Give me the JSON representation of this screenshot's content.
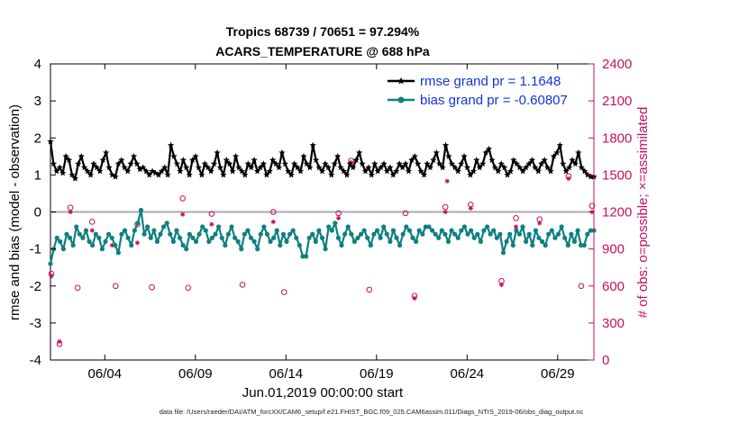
{
  "chart_data": {
    "type": "line",
    "title": "Tropics 68739 / 70651 = 97.294%",
    "subtitle": "ACARS_TEMPERATURE @ 688 hPa",
    "xlabel": "Jun.01,2019 00:00:00 start",
    "ylabel": "rmse and bias (model - observation)",
    "y2label": "# of obs: o=possible; ×=assimilated",
    "footnote": "data file: /Users/raeder/DAI/ATM_forcXX/CAM6_setup/f.e21.FHIST_BGC.f09_025.CAM6assim.011/Diags_NTrS_2019-06/obs_diag_output.nc",
    "xlim": [
      1,
      31
    ],
    "ylim": [
      -4,
      4
    ],
    "y2lim": [
      0,
      2400
    ],
    "x_ticks": [
      4,
      9,
      14,
      19,
      24,
      29
    ],
    "x_tick_labels": [
      "06/04",
      "06/09",
      "06/14",
      "06/19",
      "06/24",
      "06/29"
    ],
    "y_ticks": [
      -4,
      -3,
      -2,
      -1,
      0,
      1,
      2,
      3,
      4
    ],
    "y_tick_labels": [
      "-4",
      "-3",
      "-2",
      "-1",
      "0",
      "1",
      "2",
      "3",
      "4"
    ],
    "y2_ticks": [
      0,
      300,
      600,
      900,
      1200,
      1500,
      1800,
      2100,
      2400
    ],
    "y2_tick_labels": [
      "0",
      "300",
      "600",
      "900",
      "1200",
      "1500",
      "1800",
      "2100",
      "2400"
    ],
    "legend": {
      "position": "top-right",
      "entries": [
        "rmse grand pr = 1.1648",
        "bias grand pr = -0.60807"
      ]
    },
    "series": [
      {
        "name": "rmse grand pr = 1.1648",
        "color": "#000000",
        "values": [
          1.9,
          1.3,
          1.1,
          1.2,
          1.05,
          1.5,
          1.4,
          1.0,
          0.9,
          1.3,
          1.5,
          1.2,
          1.1,
          1.0,
          1.3,
          1.2,
          1.1,
          1.4,
          1.6,
          1.2,
          1.0,
          0.95,
          1.3,
          1.4,
          1.2,
          1.1,
          1.3,
          1.5,
          1.3,
          1.15,
          1.2,
          1.1,
          1.0,
          1.1,
          1.05,
          1.0,
          1.1,
          1.2,
          1.0,
          1.8,
          1.5,
          1.3,
          1.1,
          1.4,
          1.2,
          1.0,
          1.4,
          1.5,
          1.2,
          1.0,
          1.3,
          1.2,
          1.1,
          1.3,
          1.6,
          1.2,
          1.0,
          1.4,
          1.3,
          1.1,
          1.5,
          1.2,
          1.1,
          1.0,
          1.3,
          1.2,
          1.4,
          1.1,
          1.2,
          1.3,
          1.0,
          1.1,
          1.4,
          1.3,
          1.2,
          1.6,
          1.3,
          1.1,
          1.0,
          1.3,
          1.2,
          1.1,
          1.5,
          1.3,
          1.2,
          1.8,
          1.4,
          1.2,
          1.1,
          1.3,
          1.2,
          1.0,
          1.3,
          1.5,
          1.2,
          1.1,
          1.0,
          1.3,
          1.2,
          1.4,
          1.6,
          1.3,
          1.1,
          1.2,
          1.0,
          1.3,
          1.1,
          1.2,
          1.3,
          1.1,
          1.2,
          1.0,
          1.1,
          1.3,
          1.2,
          1.3,
          1.1,
          1.4,
          1.5,
          1.3,
          1.1,
          1.0,
          1.3,
          1.2,
          1.4,
          1.6,
          1.3,
          1.2,
          1.8,
          1.5,
          1.3,
          1.2,
          1.1,
          1.3,
          1.5,
          1.2,
          1.0,
          1.1,
          1.4,
          1.2,
          1.3,
          1.6,
          1.7,
          1.4,
          1.2,
          1.1,
          1.3,
          1.2,
          1.0,
          1.1,
          1.4,
          1.3,
          1.2,
          1.1,
          1.2,
          1.3,
          1.4,
          1.2,
          1.1,
          1.3,
          1.4,
          1.2,
          1.1,
          1.5,
          1.6,
          1.8,
          1.3,
          1.1,
          1.2,
          1.4,
          1.3,
          1.6,
          1.2,
          1.1,
          1.0,
          0.95,
          0.95
        ]
      },
      {
        "name": "bias grand pr = -0.60807",
        "color": "#0e8080",
        "values": [
          -1.4,
          -1.0,
          -0.7,
          -0.8,
          -1.0,
          -0.6,
          -0.7,
          -0.9,
          -0.4,
          -0.6,
          -0.7,
          -0.5,
          -0.8,
          -0.9,
          -0.6,
          -0.7,
          -1.0,
          -0.8,
          -0.6,
          -0.7,
          -0.9,
          -1.1,
          -0.6,
          -0.5,
          -0.7,
          -0.9,
          -0.5,
          -0.3,
          0.05,
          -0.6,
          -0.4,
          -0.7,
          -0.5,
          -0.8,
          -0.6,
          -0.4,
          -0.3,
          -0.6,
          -0.8,
          -0.5,
          -0.7,
          -0.9,
          -1.0,
          -0.6,
          -0.7,
          -0.8,
          -0.6,
          -0.4,
          -0.5,
          -0.8,
          -0.7,
          -0.6,
          -0.4,
          -0.7,
          -0.9,
          -0.6,
          -0.4,
          -0.7,
          -0.8,
          -1.0,
          -0.6,
          -0.5,
          -0.7,
          -0.8,
          -1.0,
          -0.6,
          -0.4,
          -0.6,
          -0.8,
          -0.7,
          -0.5,
          -0.9,
          -0.6,
          -0.8,
          -0.6,
          -0.5,
          -0.7,
          -0.9,
          -1.2,
          -1.2,
          -0.7,
          -0.6,
          -0.8,
          -0.5,
          -0.7,
          -1.0,
          -0.4,
          -0.5,
          -0.3,
          -0.7,
          -0.9,
          -0.6,
          -0.4,
          -0.6,
          -0.8,
          -0.7,
          -0.6,
          -0.5,
          -0.7,
          -0.9,
          -0.6,
          -0.5,
          -0.7,
          -0.4,
          -0.6,
          -0.8,
          -0.5,
          -0.7,
          -0.9,
          -0.6,
          -0.4,
          -0.5,
          -0.7,
          -0.8,
          -0.5,
          -0.6,
          -0.4,
          -0.4,
          -0.5,
          -0.6,
          -0.7,
          -0.5,
          -0.6,
          -0.8,
          -0.5,
          -0.6,
          -0.7,
          -0.5,
          -0.4,
          -0.6,
          -0.5,
          -0.7,
          -0.6,
          -0.8,
          -0.5,
          -0.4,
          -0.6,
          -0.5,
          -0.7,
          -0.6,
          -1.1,
          -0.8,
          -0.6,
          -0.9,
          -0.5,
          -0.6,
          -0.4,
          -0.8,
          -0.6,
          -0.9,
          -0.5,
          -0.7,
          -0.8,
          -0.9,
          -0.6,
          -0.5,
          -0.7,
          -0.6,
          -0.4,
          -0.7,
          -0.9,
          -0.6,
          -0.8,
          -0.5,
          -0.9,
          -0.9,
          -0.6,
          -0.5,
          -0.5
        ]
      }
    ],
    "obs_possible": [
      {
        "x": 1.05,
        "y": 700
      },
      {
        "x": 1.5,
        "y": 130
      },
      {
        "x": 2.1,
        "y": 1235
      },
      {
        "x": 2.5,
        "y": 585
      },
      {
        "x": 3.3,
        "y": 1120
      },
      {
        "x": 4.6,
        "y": 600
      },
      {
        "x": 5.8,
        "y": 1100
      },
      {
        "x": 6.6,
        "y": 590
      },
      {
        "x": 8.3,
        "y": 1310
      },
      {
        "x": 8.6,
        "y": 585
      },
      {
        "x": 9.9,
        "y": 1185
      },
      {
        "x": 11.6,
        "y": 610
      },
      {
        "x": 13.3,
        "y": 1200
      },
      {
        "x": 13.9,
        "y": 550
      },
      {
        "x": 16.9,
        "y": 1190
      },
      {
        "x": 17.6,
        "y": 1615
      },
      {
        "x": 18.6,
        "y": 570
      },
      {
        "x": 20.6,
        "y": 1190
      },
      {
        "x": 21.1,
        "y": 520
      },
      {
        "x": 22.8,
        "y": 1240
      },
      {
        "x": 24.2,
        "y": 1260
      },
      {
        "x": 25.9,
        "y": 640
      },
      {
        "x": 26.7,
        "y": 1150
      },
      {
        "x": 28.0,
        "y": 1140
      },
      {
        "x": 29.6,
        "y": 1490
      },
      {
        "x": 30.3,
        "y": 600
      },
      {
        "x": 30.9,
        "y": 1250
      }
    ],
    "obs_assimilated": [
      {
        "x": 1.05,
        "y": 680
      },
      {
        "x": 1.5,
        "y": 150
      },
      {
        "x": 2.1,
        "y": 1200
      },
      {
        "x": 3.3,
        "y": 1050
      },
      {
        "x": 4.4,
        "y": 930
      },
      {
        "x": 5.8,
        "y": 950
      },
      {
        "x": 8.3,
        "y": 1180
      },
      {
        "x": 9.9,
        "y": 1100
      },
      {
        "x": 13.3,
        "y": 1120
      },
      {
        "x": 16.9,
        "y": 1150
      },
      {
        "x": 17.6,
        "y": 1600
      },
      {
        "x": 21.1,
        "y": 500
      },
      {
        "x": 22.8,
        "y": 1200
      },
      {
        "x": 22.9,
        "y": 1450
      },
      {
        "x": 24.2,
        "y": 1230
      },
      {
        "x": 25.9,
        "y": 610
      },
      {
        "x": 26.7,
        "y": 1080
      },
      {
        "x": 28.0,
        "y": 1110
      },
      {
        "x": 29.6,
        "y": 1470
      },
      {
        "x": 30.9,
        "y": 1200
      }
    ]
  }
}
